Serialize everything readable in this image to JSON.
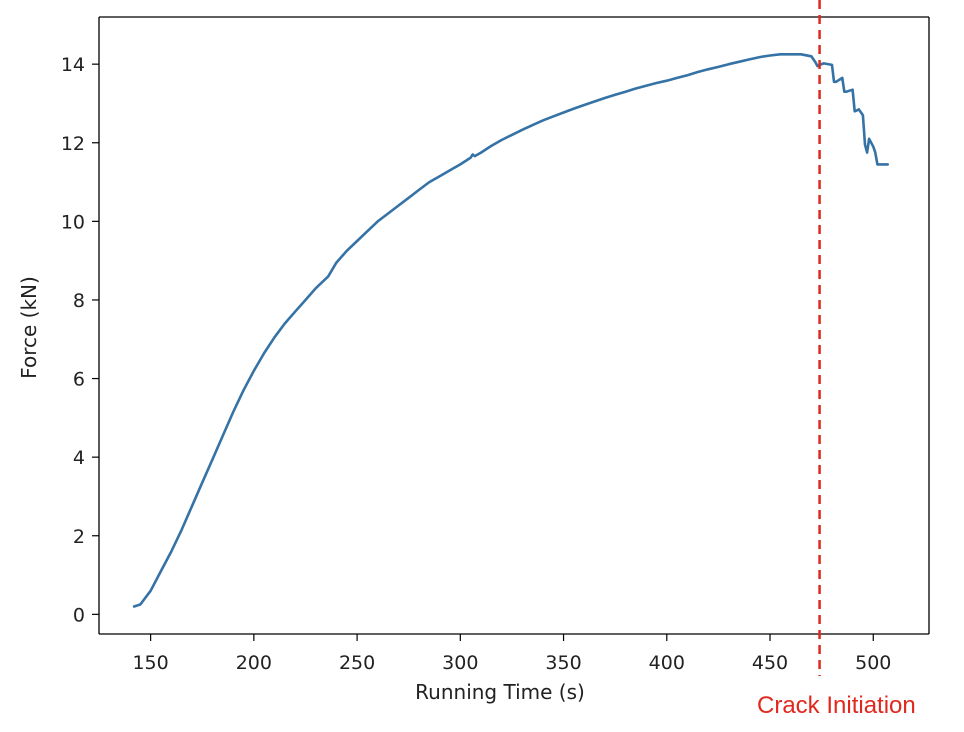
{
  "chart_data": {
    "type": "line",
    "title": "",
    "xlabel": "Running Time (s)",
    "ylabel": "Force (kN)",
    "xlim": [
      125,
      527
    ],
    "ylim": [
      -0.5,
      15.2
    ],
    "xticks": [
      150,
      200,
      250,
      300,
      350,
      400,
      450,
      500
    ],
    "yticks": [
      0,
      2,
      4,
      6,
      8,
      10,
      12,
      14
    ],
    "grid": false,
    "legend": "none",
    "colors": {
      "series": "#3572a5",
      "annotation": "#e0281e",
      "axes": "#000000"
    },
    "series": [
      {
        "x": [
          142,
          145,
          150,
          155,
          160,
          165,
          170,
          175,
          180,
          185,
          190,
          195,
          200,
          205,
          210,
          215,
          220,
          225,
          230,
          236,
          240,
          245,
          250,
          255,
          260,
          265,
          270,
          275,
          280,
          285,
          290,
          295,
          300,
          303,
          305,
          306,
          307,
          310,
          315,
          320,
          325,
          330,
          335,
          340,
          345,
          350,
          355,
          360,
          365,
          370,
          375,
          380,
          385,
          390,
          395,
          400,
          405,
          410,
          415,
          420,
          425,
          430,
          435,
          440,
          445,
          450,
          455,
          460,
          465,
          470,
          472,
          473,
          474,
          476,
          480,
          481,
          482,
          485,
          486,
          487,
          490,
          491,
          492,
          493,
          495,
          496,
          497,
          498,
          500,
          501,
          502,
          503,
          505,
          507
        ],
        "y": [
          0.2,
          0.25,
          0.6,
          1.1,
          1.6,
          2.15,
          2.75,
          3.35,
          3.95,
          4.55,
          5.15,
          5.7,
          6.2,
          6.65,
          7.05,
          7.4,
          7.7,
          8.0,
          8.3,
          8.6,
          8.95,
          9.25,
          9.5,
          9.75,
          10.0,
          10.2,
          10.4,
          10.6,
          10.8,
          11.0,
          11.15,
          11.3,
          11.45,
          11.55,
          11.62,
          11.7,
          11.66,
          11.75,
          11.92,
          12.07,
          12.2,
          12.33,
          12.45,
          12.57,
          12.67,
          12.77,
          12.87,
          12.96,
          13.05,
          13.14,
          13.22,
          13.3,
          13.38,
          13.45,
          13.52,
          13.58,
          13.65,
          13.72,
          13.8,
          13.87,
          13.93,
          14.0,
          14.06,
          14.12,
          14.18,
          14.22,
          14.25,
          14.25,
          14.25,
          14.2,
          14.05,
          13.95,
          13.98,
          14.02,
          13.98,
          13.55,
          13.55,
          13.65,
          13.3,
          13.3,
          13.35,
          12.8,
          12.82,
          12.85,
          12.7,
          11.95,
          11.75,
          12.1,
          11.9,
          11.75,
          11.45,
          11.45,
          11.45,
          11.45
        ]
      }
    ],
    "annotations": [
      {
        "type": "vline",
        "x": 474,
        "style": "dashed",
        "label": "Crack Initiation"
      }
    ]
  }
}
